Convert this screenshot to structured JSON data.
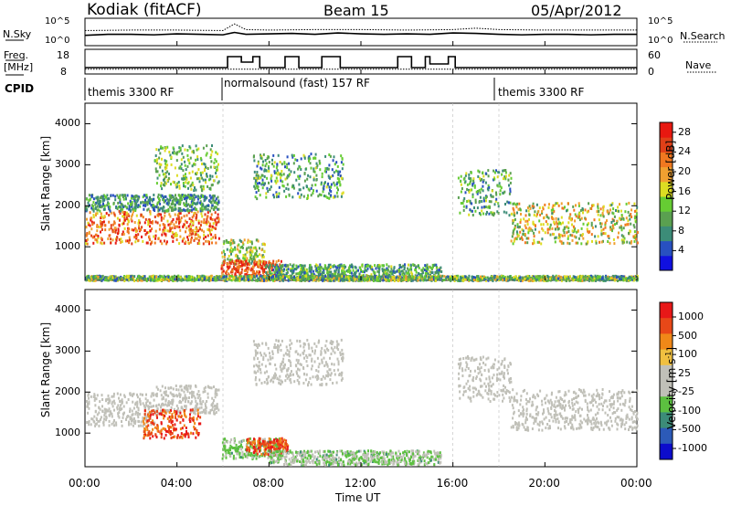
{
  "header": {
    "station": "Kodiak (fitACF)",
    "beam": "Beam 15",
    "date": "05/Apr/2012"
  },
  "left_labels": {
    "nsky": "N.Sky",
    "freq": "Freq.",
    "freq_unit": "[MHz]",
    "cpid": "CPID"
  },
  "right_labels": {
    "nsearch": "N.Search",
    "nave": "Nave"
  },
  "cpid_segments": [
    {
      "label": "themis 3300 RF",
      "start": 0,
      "end": 6
    },
    {
      "label": "normalsound (fast) 157 RF",
      "start": 6,
      "end": 18
    },
    {
      "label": "themis 3300 RF",
      "start": 18,
      "end": 24
    }
  ],
  "colors": {
    "power_scale": [
      "#1010e0",
      "#2850c0",
      "#3c8c78",
      "#5aa050",
      "#66cc33",
      "#dddd22",
      "#f0a030",
      "#f07820",
      "#e04018",
      "#e81810"
    ],
    "velocity_scale": [
      "#0c0ccc",
      "#2c5ab8",
      "#3c8c78",
      "#5cc040",
      "#c0c0b8",
      "#c0c0b8",
      "#f0c040",
      "#f08818",
      "#e84818",
      "#e81818"
    ]
  },
  "chart_data": [
    {
      "type": "line",
      "title": "",
      "xlabel": "",
      "ylabel": "N.Sky",
      "ylabel_right": "N.Search",
      "y_ticks_left": [
        "10^5",
        "10^0"
      ],
      "y_ticks_right": [
        "10^5",
        "10^0"
      ],
      "x_range": [
        0,
        24
      ],
      "x_unit": "hours UT",
      "series": [
        {
          "name": "N.Sky",
          "style": "solid",
          "x": [
            0,
            1,
            2,
            3,
            4,
            5,
            6,
            6.5,
            7,
            8,
            9,
            10,
            11,
            12,
            13,
            14,
            15,
            16,
            17,
            18,
            19,
            20,
            21,
            22,
            23,
            24
          ],
          "y_log10": [
            1.8,
            2.0,
            2.0,
            1.9,
            2.1,
            2.0,
            1.9,
            2.4,
            2.0,
            2.1,
            2.2,
            2.0,
            2.3,
            2.1,
            2.0,
            2.1,
            2.0,
            2.3,
            2.2,
            2.0,
            1.9,
            2.0,
            2.0,
            1.9,
            2.0,
            2.0
          ]
        },
        {
          "name": "N.Search",
          "style": "dotted",
          "x": [
            0,
            2,
            4,
            6,
            6.5,
            7,
            8,
            10,
            12,
            14,
            16,
            17,
            18,
            20,
            22,
            24
          ],
          "y_log10": [
            2.8,
            2.9,
            2.9,
            2.8,
            4.2,
            3.0,
            2.9,
            3.0,
            3.0,
            2.9,
            3.0,
            3.3,
            3.0,
            2.9,
            2.9,
            2.9
          ]
        }
      ]
    },
    {
      "type": "line",
      "title": "",
      "ylabel": "Freq. [MHz]",
      "ylabel_right": "Nave",
      "y_ticks_left": [
        "18",
        "8"
      ],
      "y_ticks_right": [
        "60",
        "0"
      ],
      "x_range": [
        0,
        24
      ],
      "series": [
        {
          "name": "Freq.",
          "style": "solid",
          "x": [
            0,
            6.2,
            6.2,
            6.8,
            6.8,
            7.3,
            7.3,
            7.6,
            7.6,
            8.7,
            8.7,
            9.3,
            9.3,
            10.3,
            10.3,
            11.1,
            11.1,
            13.6,
            13.6,
            14.2,
            14.2,
            14.8,
            14.8,
            15.0,
            15.0,
            15.8,
            15.8,
            16.1,
            16.1,
            24
          ],
          "y": [
            10,
            10,
            16,
            16,
            13,
            13,
            16,
            16,
            10,
            10,
            16,
            16,
            10,
            10,
            16,
            16,
            10,
            10,
            16,
            16,
            10,
            10,
            16,
            16,
            12,
            12,
            16,
            16,
            10,
            10
          ]
        },
        {
          "name": "Nave",
          "style": "dotted",
          "x": [
            0,
            24
          ],
          "y": [
            9,
            9
          ]
        }
      ]
    },
    {
      "type": "heatmap",
      "title": "",
      "xlabel": "",
      "ylabel": "Slant Range [km]",
      "x_range": [
        0,
        24
      ],
      "ylim": [
        180,
        4500
      ],
      "y_ticks": [
        1000,
        2000,
        3000,
        4000
      ],
      "colorbar": {
        "label": "Power [dB]",
        "ticks": [
          "28",
          "24",
          "20",
          "16",
          "12",
          "8",
          "4"
        ],
        "range": [
          0,
          30
        ]
      },
      "scatter_bands": [
        {
          "t": [
            0.0,
            5.8
          ],
          "r": [
            1100,
            1900
          ],
          "value_range": [
            16,
            30
          ]
        },
        {
          "t": [
            0.0,
            5.8
          ],
          "r": [
            1900,
            2300
          ],
          "value_range": [
            4,
            14
          ]
        },
        {
          "t": [
            3.0,
            5.8
          ],
          "r": [
            2400,
            3500
          ],
          "value_range": [
            6,
            18
          ]
        },
        {
          "t": [
            5.9,
            7.8
          ],
          "r": [
            600,
            1200
          ],
          "value_range": [
            8,
            20
          ]
        },
        {
          "t": [
            5.9,
            8.5
          ],
          "r": [
            300,
            700
          ],
          "value_range": [
            20,
            30
          ]
        },
        {
          "t": [
            7.3,
            11.2
          ],
          "r": [
            2200,
            3300
          ],
          "value_range": [
            4,
            16
          ]
        },
        {
          "t": [
            7.8,
            15.5
          ],
          "r": [
            250,
            600
          ],
          "value_range": [
            4,
            16
          ]
        },
        {
          "t": [
            16.2,
            18.5
          ],
          "r": [
            1800,
            2900
          ],
          "value_range": [
            4,
            16
          ]
        },
        {
          "t": [
            18.5,
            24.0
          ],
          "r": [
            1100,
            2100
          ],
          "value_range": [
            8,
            24
          ]
        },
        {
          "t": [
            0.0,
            24.0
          ],
          "r": [
            200,
            320
          ],
          "value_range": [
            4,
            20
          ]
        }
      ]
    },
    {
      "type": "heatmap",
      "title": "",
      "xlabel": "Time UT",
      "ylabel": "Slant Range [km]",
      "x_range": [
        0,
        24
      ],
      "x_ticks": [
        "00:00",
        "04:00",
        "08:00",
        "12:00",
        "16:00",
        "20:00",
        "00:00"
      ],
      "ylim": [
        180,
        4500
      ],
      "y_ticks": [
        1000,
        2000,
        3000,
        4000
      ],
      "colorbar": {
        "label": "Velocity [m s-1]",
        "ticks": [
          "1000",
          "500",
          "100",
          "25",
          "-25",
          "-100",
          "-500",
          "-1000"
        ],
        "range": [
          -1200,
          1200
        ]
      },
      "scatter_bands": [
        {
          "t": [
            0.0,
            3.0
          ],
          "r": [
            1200,
            2000
          ],
          "value_range": [
            -25,
            25
          ]
        },
        {
          "t": [
            3.0,
            5.8
          ],
          "r": [
            1500,
            2200
          ],
          "value_range": [
            -25,
            25
          ]
        },
        {
          "t": [
            2.5,
            5.0
          ],
          "r": [
            900,
            1600
          ],
          "value_range": [
            500,
            1200
          ]
        },
        {
          "t": [
            5.9,
            8.5
          ],
          "r": [
            400,
            900
          ],
          "value_range": [
            -500,
            -100
          ]
        },
        {
          "t": [
            7.0,
            8.8
          ],
          "r": [
            500,
            900
          ],
          "value_range": [
            500,
            1200
          ]
        },
        {
          "t": [
            7.3,
            11.2
          ],
          "r": [
            2200,
            3300
          ],
          "value_range": [
            -25,
            25
          ]
        },
        {
          "t": [
            8.0,
            15.5
          ],
          "r": [
            250,
            600
          ],
          "value_range": [
            -500,
            100
          ]
        },
        {
          "t": [
            16.2,
            18.5
          ],
          "r": [
            1800,
            2900
          ],
          "value_range": [
            -25,
            25
          ]
        },
        {
          "t": [
            18.5,
            24.0
          ],
          "r": [
            1100,
            2100
          ],
          "value_range": [
            -25,
            25
          ]
        }
      ]
    }
  ],
  "axes": {
    "x_label": "Time UT",
    "x_ticks": [
      "00:00",
      "04:00",
      "08:00",
      "12:00",
      "16:00",
      "20:00",
      "00:00"
    ],
    "y_label": "Slant Range [km]",
    "y_ticks": [
      "1000",
      "2000",
      "3000",
      "4000"
    ],
    "power_label": "Power [dB]",
    "velocity_label": "Velocity",
    "velocity_unit": "[m s",
    "velocity_unit_sup": "-1",
    "velocity_unit_end": "]",
    "nsky_ticks": [
      "10^5",
      "10^0"
    ],
    "nsearch_ticks": [
      "10^5",
      "10^0"
    ],
    "freq_ticks": [
      "18",
      "8"
    ],
    "nave_ticks": [
      "60",
      "0"
    ]
  }
}
